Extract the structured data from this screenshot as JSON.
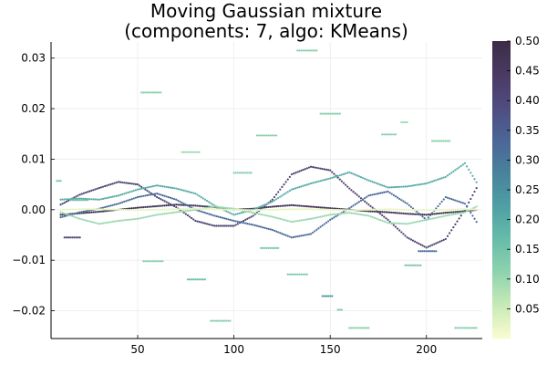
{
  "chart_data": {
    "type": "scatter",
    "title": [
      "Moving Gaussian mixture",
      "(components: 7, algo: KMeans)"
    ],
    "xlabel": "",
    "ylabel": "",
    "xlim": [
      5,
      229
    ],
    "ylim": [
      -0.0255,
      0.0332
    ],
    "xticks": [
      50,
      100,
      150,
      200
    ],
    "yticks": [
      -0.02,
      -0.01,
      0.0,
      0.01,
      0.02,
      0.03
    ],
    "xtick_labels": [
      "50",
      "100",
      "150",
      "200"
    ],
    "ytick_labels": [
      "−0.02",
      "−0.01",
      "0.00",
      "0.01",
      "0.02",
      "0.03"
    ],
    "grid": true,
    "legend": "none",
    "colorbar": {
      "min": 0.0,
      "max": 0.5,
      "ticks": [
        0.05,
        0.1,
        0.15,
        0.2,
        0.25,
        0.3,
        0.35,
        0.4,
        0.45,
        0.5
      ],
      "tick_labels": [
        "0.05",
        "0.10",
        "0.15",
        "0.20",
        "0.25",
        "0.30",
        "0.35",
        "0.40",
        "0.45",
        "0.50"
      ],
      "colormap": [
        "#fbfcd0",
        "#c8eab7",
        "#8fd3ae",
        "#67bcaa",
        "#4f9fa4",
        "#48829c",
        "#4c6597",
        "#4f4c80",
        "#4a3a62",
        "#3c2c48"
      ]
    },
    "series": [
      {
        "weight": 0.48,
        "x": [
          10,
          20,
          30,
          40,
          50,
          60,
          70,
          80,
          90,
          100,
          110,
          120,
          130,
          140,
          150,
          160,
          170,
          180,
          190,
          200,
          210,
          220,
          227
        ],
        "y": [
          -0.001,
          -0.0007,
          -0.0004,
          0.0,
          0.0004,
          0.0007,
          0.001,
          0.0008,
          0.0005,
          0.0,
          0.0002,
          0.0006,
          0.0009,
          0.0006,
          0.0003,
          0.0,
          -0.0003,
          -0.0005,
          -0.0008,
          -0.001,
          -0.0006,
          -0.0003,
          0.0
        ]
      },
      {
        "weight": 0.42,
        "x": [
          10,
          20,
          30,
          40,
          50,
          60,
          70,
          80,
          90,
          100,
          110,
          120,
          130,
          140,
          150,
          160,
          170,
          180,
          190,
          200,
          210,
          220,
          227
        ],
        "y": [
          0.001,
          0.003,
          0.0043,
          0.0055,
          0.005,
          0.0025,
          0.0005,
          -0.0022,
          -0.0032,
          -0.0032,
          -0.0012,
          0.002,
          0.007,
          0.0085,
          0.0078,
          0.0042,
          0.001,
          -0.002,
          -0.0055,
          -0.0075,
          -0.0058,
          0.0,
          0.005
        ]
      },
      {
        "weight": 0.32,
        "x": [
          10,
          20,
          30,
          40,
          50,
          60,
          70,
          80,
          90,
          100,
          110,
          120,
          130,
          140,
          150,
          160,
          170,
          180,
          190,
          200,
          210,
          220,
          227
        ],
        "y": [
          -0.0015,
          -0.0005,
          0.0002,
          0.0012,
          0.0025,
          0.0032,
          0.002,
          0.0,
          -0.0012,
          -0.0022,
          -0.003,
          -0.004,
          -0.0055,
          -0.0048,
          -0.002,
          0.0003,
          0.0028,
          0.0036,
          0.0012,
          -0.002,
          0.0025,
          0.0012,
          -0.003
        ]
      },
      {
        "weight": 0.2,
        "x": [
          10,
          20,
          30,
          40,
          50,
          60,
          70,
          80,
          90,
          100,
          110,
          120,
          130,
          140,
          150,
          160,
          170,
          180,
          190,
          200,
          210,
          220,
          227
        ],
        "y": [
          0.002,
          0.0022,
          0.002,
          0.0028,
          0.004,
          0.0048,
          0.0042,
          0.0032,
          0.0008,
          -0.001,
          0.0,
          0.0016,
          0.004,
          0.0052,
          0.0062,
          0.0074,
          0.0058,
          0.0044,
          0.0046,
          0.0052,
          0.0065,
          0.0092,
          0.0048
        ]
      },
      {
        "weight": 0.1,
        "x": [
          10,
          20,
          30,
          40,
          50,
          60,
          70,
          80,
          90,
          100,
          110,
          120,
          130,
          140,
          150,
          160,
          170,
          180,
          190,
          200,
          210,
          220,
          227
        ],
        "y": [
          -0.0005,
          -0.0018,
          -0.0028,
          -0.0022,
          -0.0018,
          -0.001,
          -0.0005,
          0.0,
          0.0006,
          0.0002,
          -0.0006,
          -0.0014,
          -0.0024,
          -0.0018,
          -0.001,
          -0.0006,
          -0.0012,
          -0.0026,
          -0.0028,
          -0.002,
          -0.0012,
          -0.0005,
          0.0008
        ]
      },
      {
        "weight": 0.02,
        "x": [
          10,
          20,
          30,
          40,
          50,
          60,
          70,
          80,
          90,
          100,
          110,
          120,
          130,
          140,
          150,
          160,
          170,
          180,
          190,
          200,
          210,
          220,
          227
        ],
        "y": [
          0.0,
          0.0001,
          0.0001,
          0.0,
          -0.0001,
          0.0,
          0.0001,
          0.0002,
          0.0001,
          0.0,
          -0.0001,
          0.0,
          0.0001,
          0.0001,
          0.0,
          -0.0001,
          0.0,
          0.0001,
          0.0,
          -0.0001,
          0.0,
          0.0001,
          0.0
        ]
      }
    ],
    "outliers": [
      {
        "x0": 8,
        "x1": 10,
        "y": 0.0057,
        "weight": 0.14
      },
      {
        "x0": 12,
        "x1": 20,
        "y": -0.0055,
        "weight": 0.4
      },
      {
        "x0": 15,
        "x1": 24,
        "y": 0.0019,
        "weight": 0.16
      },
      {
        "x0": 52,
        "x1": 62,
        "y": 0.0232,
        "weight": 0.12
      },
      {
        "x0": 53,
        "x1": 63,
        "y": -0.0102,
        "weight": 0.12
      },
      {
        "x0": 73,
        "x1": 82,
        "y": 0.0114,
        "weight": 0.1
      },
      {
        "x0": 76,
        "x1": 85,
        "y": -0.0138,
        "weight": 0.16
      },
      {
        "x0": 88,
        "x1": 98,
        "y": -0.022,
        "weight": 0.12
      },
      {
        "x0": 100,
        "x1": 109,
        "y": 0.0073,
        "weight": 0.12
      },
      {
        "x0": 112,
        "x1": 122,
        "y": 0.0147,
        "weight": 0.12
      },
      {
        "x0": 114,
        "x1": 123,
        "y": -0.0076,
        "weight": 0.14
      },
      {
        "x0": 128,
        "x1": 138,
        "y": -0.0128,
        "weight": 0.14
      },
      {
        "x0": 133,
        "x1": 143,
        "y": 0.0315,
        "weight": 0.12
      },
      {
        "x0": 145,
        "x1": 155,
        "y": 0.019,
        "weight": 0.12
      },
      {
        "x0": 146,
        "x1": 151,
        "y": -0.0171,
        "weight": 0.24
      },
      {
        "x0": 154,
        "x1": 156,
        "y": -0.0198,
        "weight": 0.14
      },
      {
        "x0": 160,
        "x1": 170,
        "y": -0.0234,
        "weight": 0.12
      },
      {
        "x0": 177,
        "x1": 184,
        "y": 0.0149,
        "weight": 0.12
      },
      {
        "x0": 187,
        "x1": 190,
        "y": 0.0173,
        "weight": 0.1
      },
      {
        "x0": 189,
        "x1": 197,
        "y": -0.011,
        "weight": 0.14
      },
      {
        "x0": 196,
        "x1": 205,
        "y": -0.0082,
        "weight": 0.3
      },
      {
        "x0": 203,
        "x1": 212,
        "y": 0.0136,
        "weight": 0.12
      },
      {
        "x0": 215,
        "x1": 226,
        "y": -0.0234,
        "weight": 0.12
      }
    ]
  }
}
